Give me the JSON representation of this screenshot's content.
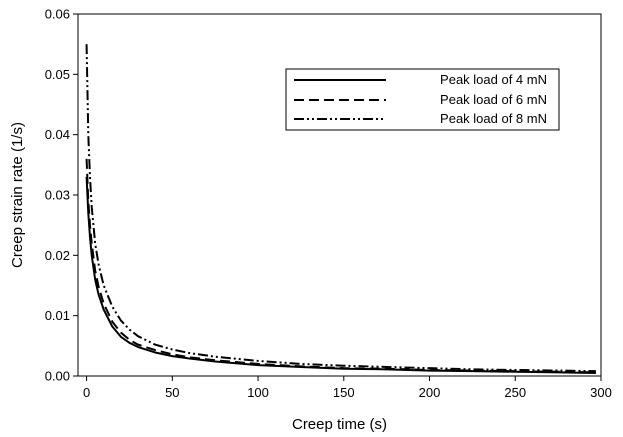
{
  "chart_data": {
    "type": "line",
    "title": "",
    "xlabel": "Creep time (s)",
    "ylabel": "Creep strain rate (1/s)",
    "xlim": [
      -5,
      300
    ],
    "ylim": [
      0,
      0.06
    ],
    "xticks": [
      0,
      50,
      100,
      150,
      200,
      250,
      300
    ],
    "yticks": [
      0.0,
      0.01,
      0.02,
      0.03,
      0.04,
      0.05,
      0.06
    ],
    "xtick_labels": [
      "0",
      "50",
      "100",
      "150",
      "200",
      "250",
      "300"
    ],
    "ytick_labels": [
      "0.00",
      "0.01",
      "0.02",
      "0.03",
      "0.04",
      "0.05",
      "0.06"
    ],
    "grid": false,
    "legend_position": "top-right",
    "series": [
      {
        "name": "Peak load of 4 mN",
        "dash": "solid",
        "x": [
          0,
          1,
          2,
          3,
          5,
          7,
          10,
          15,
          20,
          25,
          30,
          40,
          50,
          60,
          75,
          100,
          125,
          150,
          175,
          200,
          225,
          250,
          275,
          297
        ],
        "y": [
          0.033,
          0.027,
          0.023,
          0.02,
          0.016,
          0.0135,
          0.011,
          0.0082,
          0.0065,
          0.0055,
          0.0048,
          0.0039,
          0.0033,
          0.0029,
          0.0024,
          0.0018,
          0.0015,
          0.0012,
          0.0011,
          0.0009,
          0.0008,
          0.0007,
          0.0006,
          0.0005
        ]
      },
      {
        "name": "Peak load of 6 mN",
        "dash": "dash",
        "x": [
          0,
          1,
          2,
          3,
          5,
          7,
          10,
          15,
          20,
          25,
          30,
          40,
          50,
          60,
          75,
          100,
          125,
          150,
          175,
          200,
          225,
          250,
          275,
          297
        ],
        "y": [
          0.036,
          0.029,
          0.025,
          0.022,
          0.0175,
          0.0148,
          0.012,
          0.009,
          0.0072,
          0.006,
          0.0052,
          0.0043,
          0.0036,
          0.0031,
          0.0026,
          0.002,
          0.0016,
          0.0013,
          0.0012,
          0.001,
          0.0009,
          0.0008,
          0.0007,
          0.0006
        ]
      },
      {
        "name": "Peak load of 8 mN",
        "dash": "dashdotdot",
        "x": [
          0,
          1,
          2,
          3,
          5,
          7,
          10,
          15,
          20,
          25,
          30,
          40,
          50,
          60,
          75,
          100,
          125,
          150,
          175,
          200,
          225,
          250,
          275,
          297
        ],
        "y": [
          0.055,
          0.04,
          0.033,
          0.028,
          0.022,
          0.0185,
          0.015,
          0.0115,
          0.0092,
          0.0077,
          0.0066,
          0.0052,
          0.0044,
          0.0038,
          0.0032,
          0.0025,
          0.002,
          0.0017,
          0.0015,
          0.0013,
          0.0011,
          0.001,
          0.0009,
          0.0008
        ]
      }
    ]
  }
}
